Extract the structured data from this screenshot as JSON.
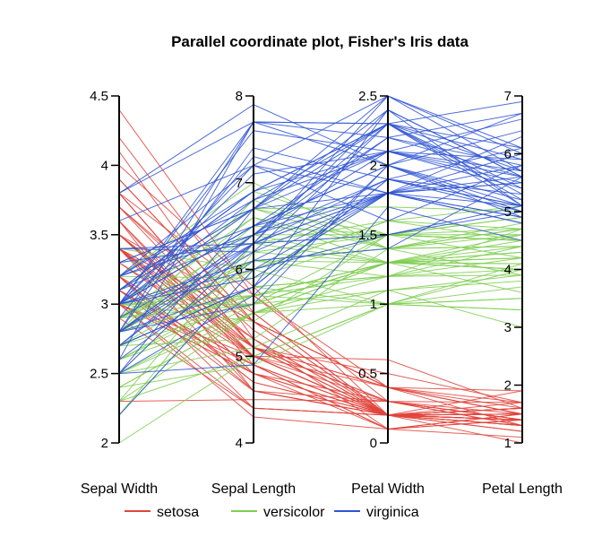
{
  "chart_data": {
    "type": "parallel-coordinates",
    "title": "Parallel coordinate plot, Fisher's Iris data",
    "axes": [
      {
        "name": "Sepal Width",
        "min": 2,
        "max": 4.5,
        "ticks": [
          "2",
          "2.5",
          "3",
          "3.5",
          "4",
          "4.5"
        ]
      },
      {
        "name": "Sepal Length",
        "min": 4,
        "max": 8,
        "ticks": [
          "4",
          "5",
          "6",
          "7",
          "8"
        ]
      },
      {
        "name": "Petal Width",
        "min": 0,
        "max": 2.5,
        "ticks": [
          "0",
          "0.5",
          "1",
          "1.5",
          "2",
          "2.5"
        ]
      },
      {
        "name": "Petal Length",
        "min": 1,
        "max": 7,
        "ticks": [
          "1",
          "2",
          "3",
          "4",
          "5",
          "6",
          "7"
        ]
      }
    ],
    "series": [
      {
        "name": "setosa",
        "color": "#e0443c",
        "records": [
          [
            3.5,
            5.1,
            0.2,
            1.4
          ],
          [
            3.0,
            4.9,
            0.2,
            1.4
          ],
          [
            3.2,
            4.7,
            0.2,
            1.3
          ],
          [
            3.1,
            4.6,
            0.2,
            1.5
          ],
          [
            3.6,
            5.0,
            0.2,
            1.4
          ],
          [
            3.9,
            5.4,
            0.4,
            1.7
          ],
          [
            3.4,
            4.6,
            0.3,
            1.4
          ],
          [
            3.4,
            5.0,
            0.2,
            1.5
          ],
          [
            2.9,
            4.4,
            0.2,
            1.4
          ],
          [
            3.1,
            4.9,
            0.1,
            1.5
          ],
          [
            3.7,
            5.4,
            0.2,
            1.5
          ],
          [
            3.4,
            4.8,
            0.2,
            1.6
          ],
          [
            3.0,
            4.8,
            0.1,
            1.4
          ],
          [
            3.0,
            4.3,
            0.1,
            1.1
          ],
          [
            4.0,
            5.8,
            0.2,
            1.2
          ],
          [
            4.4,
            5.7,
            0.4,
            1.5
          ],
          [
            3.9,
            5.4,
            0.4,
            1.3
          ],
          [
            3.5,
            5.1,
            0.3,
            1.4
          ],
          [
            3.8,
            5.7,
            0.3,
            1.7
          ],
          [
            3.8,
            5.1,
            0.3,
            1.5
          ],
          [
            3.4,
            5.4,
            0.2,
            1.7
          ],
          [
            3.7,
            5.1,
            0.4,
            1.5
          ],
          [
            3.6,
            4.6,
            0.2,
            1.0
          ],
          [
            3.3,
            5.1,
            0.5,
            1.7
          ],
          [
            3.4,
            4.8,
            0.2,
            1.9
          ],
          [
            3.0,
            5.0,
            0.2,
            1.6
          ],
          [
            3.4,
            5.0,
            0.4,
            1.6
          ],
          [
            3.5,
            5.2,
            0.2,
            1.5
          ],
          [
            3.4,
            5.2,
            0.2,
            1.4
          ],
          [
            3.2,
            4.7,
            0.2,
            1.6
          ],
          [
            3.1,
            4.8,
            0.2,
            1.6
          ],
          [
            3.4,
            5.4,
            0.4,
            1.5
          ],
          [
            4.1,
            5.2,
            0.1,
            1.5
          ],
          [
            4.2,
            5.5,
            0.2,
            1.4
          ],
          [
            3.1,
            4.9,
            0.2,
            1.5
          ],
          [
            3.2,
            5.0,
            0.2,
            1.2
          ],
          [
            3.5,
            5.5,
            0.2,
            1.3
          ],
          [
            3.6,
            4.9,
            0.1,
            1.4
          ],
          [
            3.0,
            4.4,
            0.2,
            1.3
          ],
          [
            3.4,
            5.1,
            0.2,
            1.5
          ],
          [
            3.5,
            5.0,
            0.3,
            1.3
          ],
          [
            2.3,
            4.5,
            0.3,
            1.3
          ],
          [
            3.2,
            4.4,
            0.2,
            1.3
          ],
          [
            3.5,
            5.0,
            0.6,
            1.6
          ],
          [
            3.8,
            5.1,
            0.4,
            1.9
          ],
          [
            3.0,
            4.8,
            0.3,
            1.4
          ],
          [
            3.8,
            5.1,
            0.2,
            1.6
          ],
          [
            3.2,
            4.6,
            0.2,
            1.4
          ],
          [
            3.7,
            5.3,
            0.2,
            1.5
          ],
          [
            3.3,
            5.0,
            0.2,
            1.4
          ]
        ]
      },
      {
        "name": "versicolor",
        "color": "#7fce52",
        "records": [
          [
            3.2,
            7.0,
            1.4,
            4.7
          ],
          [
            3.2,
            6.4,
            1.5,
            4.5
          ],
          [
            3.1,
            6.9,
            1.5,
            4.9
          ],
          [
            2.3,
            5.5,
            1.3,
            4.0
          ],
          [
            2.8,
            6.5,
            1.5,
            4.6
          ],
          [
            2.8,
            5.7,
            1.3,
            4.5
          ],
          [
            3.3,
            6.3,
            1.6,
            4.7
          ],
          [
            2.4,
            4.9,
            1.0,
            3.3
          ],
          [
            2.9,
            6.6,
            1.3,
            4.6
          ],
          [
            2.7,
            5.2,
            1.4,
            3.9
          ],
          [
            2.0,
            5.0,
            1.0,
            3.5
          ],
          [
            3.0,
            5.9,
            1.5,
            4.2
          ],
          [
            2.2,
            6.0,
            1.0,
            4.0
          ],
          [
            2.9,
            6.1,
            1.4,
            4.7
          ],
          [
            2.9,
            5.6,
            1.3,
            3.6
          ],
          [
            3.1,
            6.7,
            1.4,
            4.4
          ],
          [
            3.0,
            5.6,
            1.5,
            4.5
          ],
          [
            2.7,
            5.8,
            1.0,
            4.1
          ],
          [
            2.2,
            6.2,
            1.5,
            4.5
          ],
          [
            2.5,
            5.6,
            1.1,
            3.9
          ],
          [
            3.2,
            5.9,
            1.8,
            4.8
          ],
          [
            2.8,
            6.1,
            1.3,
            4.0
          ],
          [
            2.5,
            6.3,
            1.5,
            4.9
          ],
          [
            2.8,
            6.1,
            1.2,
            4.7
          ],
          [
            2.9,
            6.4,
            1.3,
            4.3
          ],
          [
            3.0,
            6.6,
            1.4,
            4.4
          ],
          [
            2.8,
            6.8,
            1.4,
            4.8
          ],
          [
            3.0,
            6.7,
            1.7,
            5.0
          ],
          [
            2.9,
            6.0,
            1.5,
            4.5
          ],
          [
            2.6,
            5.7,
            1.0,
            3.5
          ],
          [
            2.4,
            5.5,
            1.1,
            3.8
          ],
          [
            2.4,
            5.5,
            1.0,
            3.7
          ],
          [
            2.7,
            5.8,
            1.2,
            3.9
          ],
          [
            2.7,
            6.0,
            1.6,
            5.1
          ],
          [
            3.0,
            5.4,
            1.5,
            4.5
          ],
          [
            3.4,
            6.0,
            1.6,
            4.5
          ],
          [
            3.1,
            6.7,
            1.5,
            4.7
          ],
          [
            2.3,
            6.3,
            1.3,
            4.4
          ],
          [
            3.0,
            5.6,
            1.3,
            4.1
          ],
          [
            2.5,
            5.5,
            1.3,
            4.0
          ],
          [
            2.6,
            5.5,
            1.2,
            4.4
          ],
          [
            3.0,
            6.1,
            1.4,
            4.6
          ],
          [
            2.6,
            5.8,
            1.2,
            4.0
          ],
          [
            2.3,
            5.0,
            1.0,
            3.3
          ],
          [
            2.7,
            5.6,
            1.3,
            4.2
          ],
          [
            3.0,
            5.7,
            1.2,
            4.2
          ],
          [
            2.9,
            5.7,
            1.3,
            4.2
          ],
          [
            2.9,
            6.2,
            1.3,
            4.3
          ],
          [
            2.5,
            5.1,
            1.1,
            3.0
          ],
          [
            2.8,
            5.7,
            1.3,
            4.1
          ]
        ]
      },
      {
        "name": "virginica",
        "color": "#2f55d4",
        "records": [
          [
            3.3,
            6.3,
            2.5,
            6.0
          ],
          [
            2.7,
            5.8,
            1.9,
            5.1
          ],
          [
            3.0,
            7.1,
            2.1,
            5.9
          ],
          [
            2.9,
            6.3,
            1.8,
            5.6
          ],
          [
            3.0,
            6.5,
            2.2,
            5.8
          ],
          [
            3.0,
            7.6,
            2.1,
            6.6
          ],
          [
            2.5,
            4.9,
            1.7,
            4.5
          ],
          [
            2.9,
            7.3,
            1.8,
            6.3
          ],
          [
            2.5,
            6.7,
            1.8,
            5.8
          ],
          [
            3.6,
            7.2,
            2.5,
            6.1
          ],
          [
            3.2,
            6.5,
            2.0,
            5.1
          ],
          [
            2.7,
            6.4,
            1.9,
            5.3
          ],
          [
            3.0,
            6.8,
            2.1,
            5.5
          ],
          [
            2.5,
            5.7,
            2.0,
            5.0
          ],
          [
            2.8,
            5.8,
            2.4,
            5.1
          ],
          [
            3.2,
            6.4,
            2.3,
            5.3
          ],
          [
            3.0,
            6.5,
            1.8,
            5.5
          ],
          [
            3.8,
            7.7,
            2.2,
            6.7
          ],
          [
            2.6,
            7.7,
            2.3,
            6.9
          ],
          [
            2.2,
            6.0,
            1.5,
            5.0
          ],
          [
            3.2,
            6.9,
            2.3,
            5.7
          ],
          [
            2.8,
            5.6,
            2.0,
            4.9
          ],
          [
            2.8,
            7.7,
            2.0,
            6.7
          ],
          [
            2.7,
            6.3,
            1.8,
            4.9
          ],
          [
            3.3,
            6.7,
            2.1,
            5.7
          ],
          [
            3.2,
            7.2,
            1.8,
            6.0
          ],
          [
            2.8,
            6.2,
            1.8,
            4.8
          ],
          [
            3.0,
            6.1,
            1.8,
            4.9
          ],
          [
            2.8,
            6.4,
            2.1,
            5.6
          ],
          [
            3.0,
            7.2,
            1.6,
            5.8
          ],
          [
            2.8,
            7.4,
            1.9,
            6.1
          ],
          [
            3.8,
            7.9,
            2.0,
            6.4
          ],
          [
            2.8,
            6.4,
            2.2,
            5.6
          ],
          [
            2.8,
            6.3,
            1.5,
            5.1
          ],
          [
            2.6,
            6.1,
            1.4,
            5.6
          ],
          [
            3.0,
            7.7,
            2.3,
            6.1
          ],
          [
            3.4,
            6.3,
            2.4,
            5.6
          ],
          [
            3.1,
            6.4,
            1.8,
            5.5
          ],
          [
            3.0,
            6.0,
            1.8,
            4.8
          ],
          [
            3.1,
            6.9,
            2.1,
            5.4
          ],
          [
            3.1,
            6.7,
            2.4,
            5.6
          ],
          [
            3.1,
            6.9,
            2.3,
            5.1
          ],
          [
            2.7,
            5.8,
            1.9,
            5.1
          ],
          [
            3.2,
            6.8,
            2.3,
            5.9
          ],
          [
            3.3,
            6.7,
            2.5,
            5.7
          ],
          [
            3.0,
            6.7,
            2.3,
            5.2
          ],
          [
            2.5,
            6.3,
            1.9,
            5.0
          ],
          [
            3.0,
            6.5,
            2.0,
            5.2
          ],
          [
            3.4,
            6.2,
            2.3,
            5.4
          ],
          [
            3.0,
            5.9,
            1.8,
            5.1
          ]
        ]
      }
    ],
    "legend": {
      "placement": "bottom",
      "entries": [
        "setosa",
        "versicolor",
        "virginica"
      ]
    }
  }
}
